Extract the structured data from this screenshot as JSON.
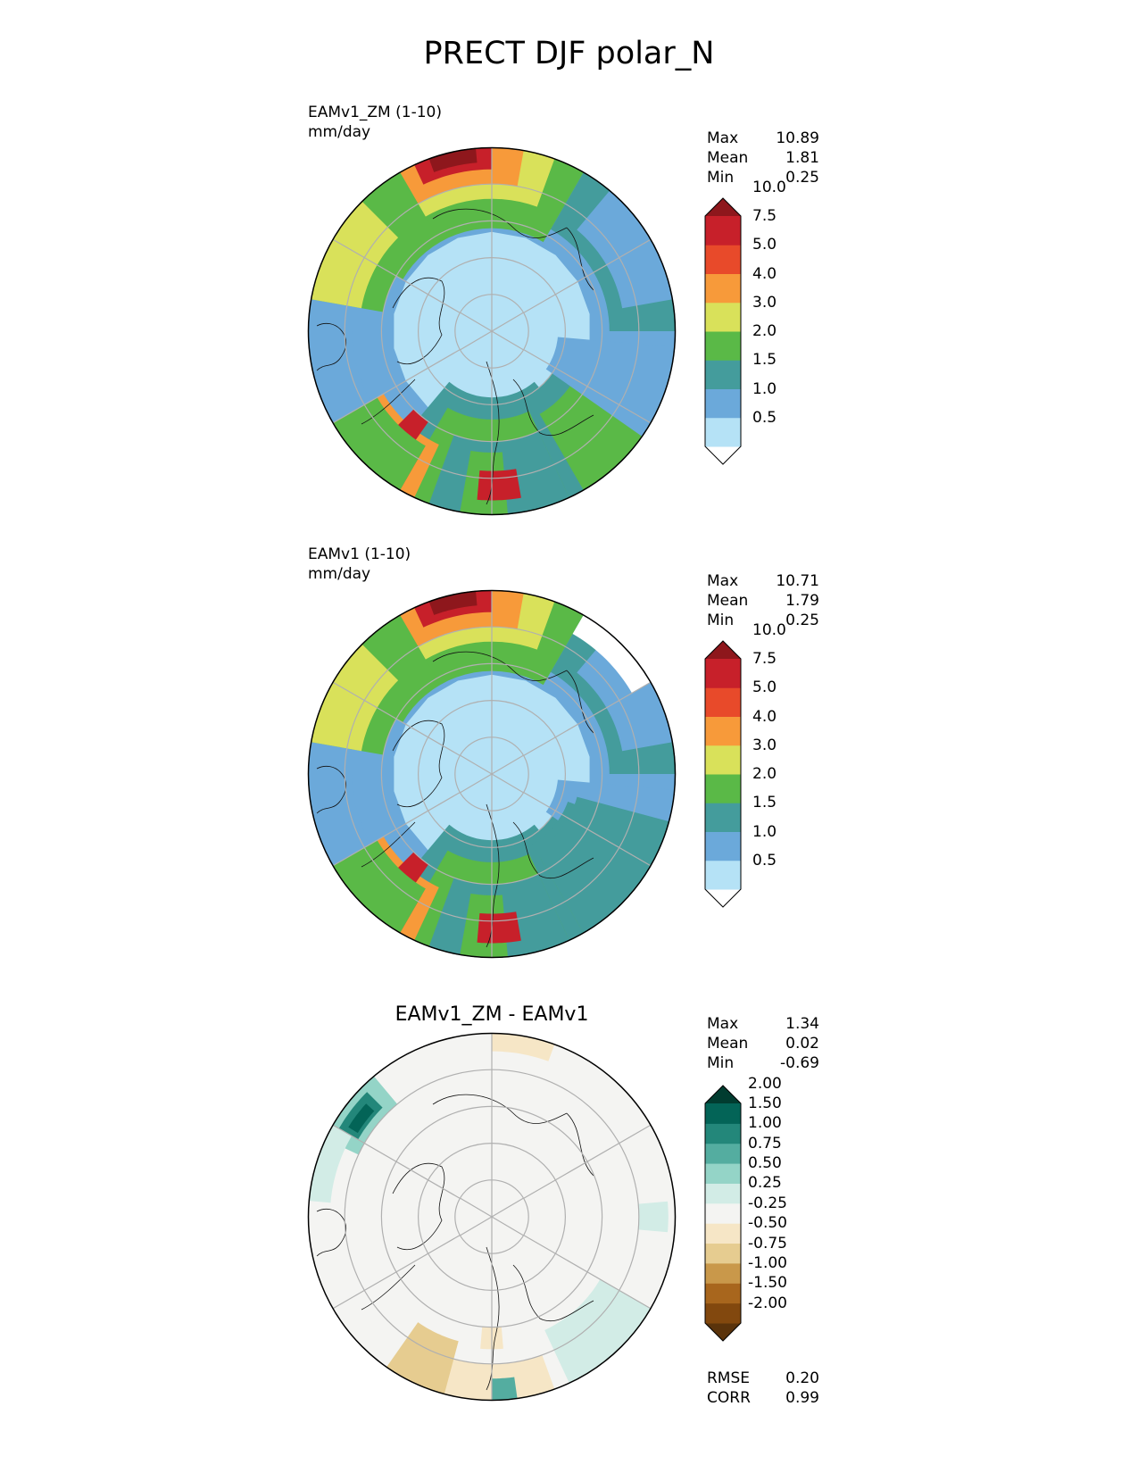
{
  "figure_title": "PRECT DJF polar_N",
  "panels": [
    {
      "model": "EAMv1_ZM (1-10)",
      "units": "mm/day",
      "stats": [
        {
          "label": "Max",
          "value": "10.89"
        },
        {
          "label": "Mean",
          "value": "1.81"
        },
        {
          "label": "Min",
          "value": "0.25"
        }
      ]
    },
    {
      "model": "EAMv1 (1-10)",
      "units": "mm/day",
      "stats": [
        {
          "label": "Max",
          "value": "10.71"
        },
        {
          "label": "Mean",
          "value": "1.79"
        },
        {
          "label": "Min",
          "value": "0.25"
        }
      ]
    },
    {
      "title": "EAMv1_ZM - EAMv1",
      "stats": [
        {
          "label": "Max",
          "value": "1.34"
        },
        {
          "label": "Mean",
          "value": "0.02"
        },
        {
          "label": "Min",
          "value": "-0.69"
        }
      ],
      "extra_stats": [
        {
          "label": "RMSE",
          "value": "0.20"
        },
        {
          "label": "CORR",
          "value": "0.99"
        }
      ]
    }
  ],
  "chart_data": [
    {
      "type": "heatmap",
      "projection": "north-polar-stereographic",
      "title": "EAMv1_ZM (1-10)",
      "units": "mm/day",
      "colorbar": {
        "levels": [
          "0.5",
          "1.0",
          "1.5",
          "2.0",
          "3.0",
          "4.0",
          "5.0",
          "7.5",
          "10.0"
        ],
        "colors": [
          "#ffffff",
          "#b5e2f6",
          "#6ba9da",
          "#449c9c",
          "#5ab947",
          "#d9e15a",
          "#f79a3a",
          "#e84a2a",
          "#c7202a",
          "#8e171c"
        ]
      }
    },
    {
      "type": "heatmap",
      "projection": "north-polar-stereographic",
      "title": "EAMv1 (1-10)",
      "units": "mm/day",
      "colorbar": {
        "levels": [
          "0.5",
          "1.0",
          "1.5",
          "2.0",
          "3.0",
          "4.0",
          "5.0",
          "7.5",
          "10.0"
        ],
        "colors": [
          "#ffffff",
          "#b5e2f6",
          "#6ba9da",
          "#449c9c",
          "#5ab947",
          "#d9e15a",
          "#f79a3a",
          "#e84a2a",
          "#c7202a",
          "#8e171c"
        ]
      }
    },
    {
      "type": "heatmap",
      "projection": "north-polar-stereographic",
      "title": "EAMv1_ZM - EAMv1",
      "colorbar": {
        "levels": [
          "-2.00",
          "-1.50",
          "-1.00",
          "-0.75",
          "-0.50",
          "-0.25",
          "0.25",
          "0.50",
          "0.75",
          "1.00",
          "1.50",
          "2.00"
        ],
        "colors": [
          "#5a330b",
          "#82480e",
          "#a8661d",
          "#c9984a",
          "#e6cc90",
          "#f6e6c6",
          "#f4f4f2",
          "#d2ece6",
          "#94d4c7",
          "#54ada0",
          "#23877a",
          "#036457",
          "#013c30"
        ]
      }
    }
  ]
}
